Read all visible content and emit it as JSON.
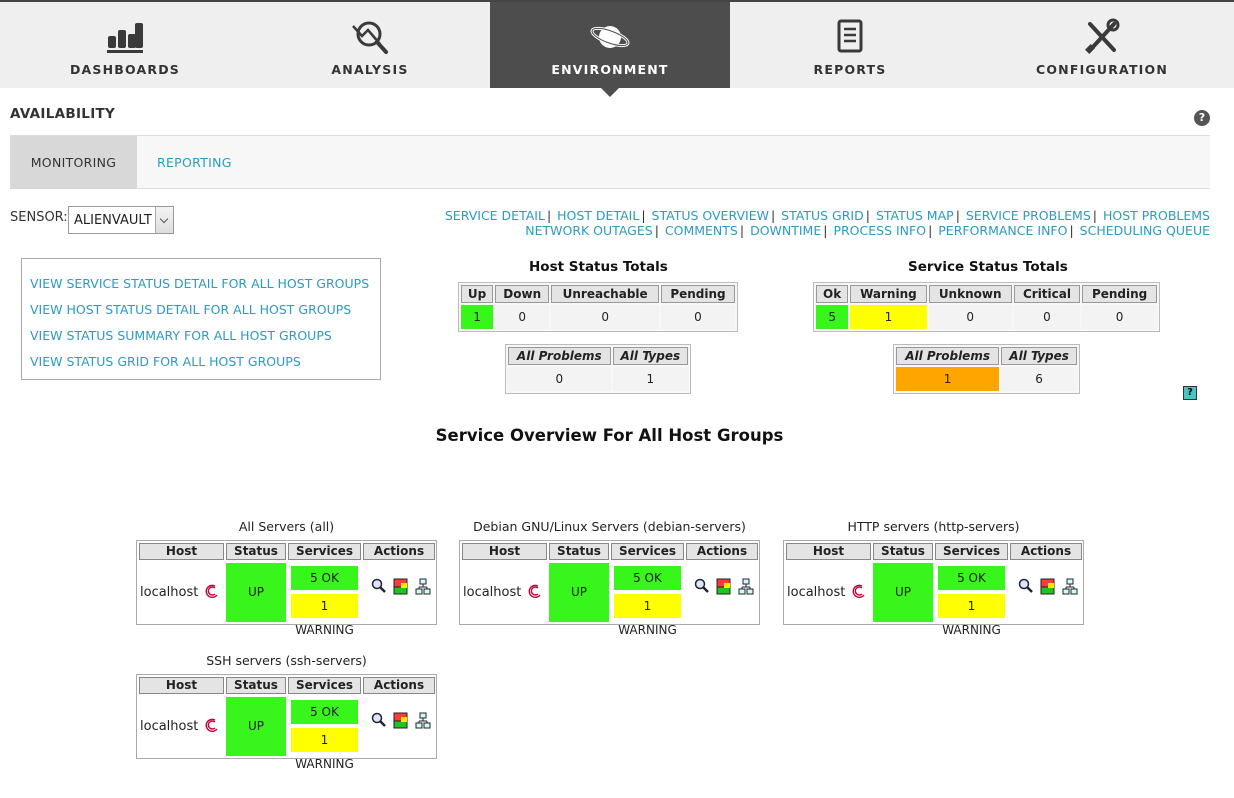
{
  "nav": {
    "tabs": [
      {
        "label": "DASHBOARDS",
        "icon": "bar-chart-icon"
      },
      {
        "label": "ANALYSIS",
        "icon": "magnifier-chart-icon"
      },
      {
        "label": "ENVIRONMENT",
        "icon": "planet-icon",
        "active": true
      },
      {
        "label": "REPORTS",
        "icon": "report-icon"
      },
      {
        "label": "CONFIGURATION",
        "icon": "tools-icon"
      }
    ]
  },
  "section": {
    "title": "AVAILABILITY",
    "help": "?"
  },
  "subtabs": {
    "monitoring": "MONITORING",
    "reporting": "REPORTING"
  },
  "sensor": {
    "label": "SENSOR:",
    "value": "ALIENVAULT"
  },
  "quicklinks": {
    "row1": [
      "SERVICE DETAIL",
      "HOST DETAIL",
      "STATUS OVERVIEW",
      "STATUS GRID",
      "STATUS MAP",
      "SERVICE PROBLEMS",
      "HOST PROBLEMS"
    ],
    "row2": [
      "NETWORK OUTAGES",
      "COMMENTS",
      "DOWNTIME",
      "PROCESS INFO",
      "PERFORMANCE INFO",
      "SCHEDULING QUEUE"
    ]
  },
  "leftlinks": [
    "VIEW SERVICE STATUS DETAIL FOR ALL HOST GROUPS",
    "VIEW HOST STATUS DETAIL FOR ALL HOST GROUPS",
    "VIEW STATUS SUMMARY FOR ALL HOST GROUPS",
    "VIEW STATUS GRID FOR ALL HOST GROUPS"
  ],
  "host_totals": {
    "title": "Host Status Totals",
    "headers": [
      "Up",
      "Down",
      "Unreachable",
      "Pending"
    ],
    "values": [
      "1",
      "0",
      "0",
      "0"
    ],
    "summary_headers": [
      "All Problems",
      "All Types"
    ],
    "summary_values": [
      "0",
      "1"
    ]
  },
  "service_totals": {
    "title": "Service Status Totals",
    "headers": [
      "Ok",
      "Warning",
      "Unknown",
      "Critical",
      "Pending"
    ],
    "values": [
      "5",
      "1",
      "0",
      "0",
      "0"
    ],
    "summary_headers": [
      "All Problems",
      "All Types"
    ],
    "summary_values": [
      "1",
      "6"
    ]
  },
  "small_help": "?",
  "overview_title": "Service Overview For All Host Groups",
  "group_headers": [
    "Host",
    "Status",
    "Services",
    "Actions"
  ],
  "groups": [
    {
      "title": "All Servers (all)",
      "host": "localhost",
      "status": "UP",
      "ok": "5 OK",
      "warning": "1 WARNING"
    },
    {
      "title": "Debian GNU/Linux Servers (debian-servers)",
      "host": "localhost",
      "status": "UP",
      "ok": "5 OK",
      "warning": "1 WARNING"
    },
    {
      "title": "HTTP servers (http-servers)",
      "host": "localhost",
      "status": "UP",
      "ok": "5 OK",
      "warning": "1 WARNING"
    },
    {
      "title": "SSH servers (ssh-servers)",
      "host": "localhost",
      "status": "UP",
      "ok": "5 OK",
      "warning": "1 WARNING"
    }
  ],
  "colors": {
    "accent_link": "#2a9bc2",
    "ok_green": "#38f51b",
    "warning_yellow": "#ffff00",
    "problem_orange": "#ffa500",
    "nav_active": "#4d4d4d"
  }
}
